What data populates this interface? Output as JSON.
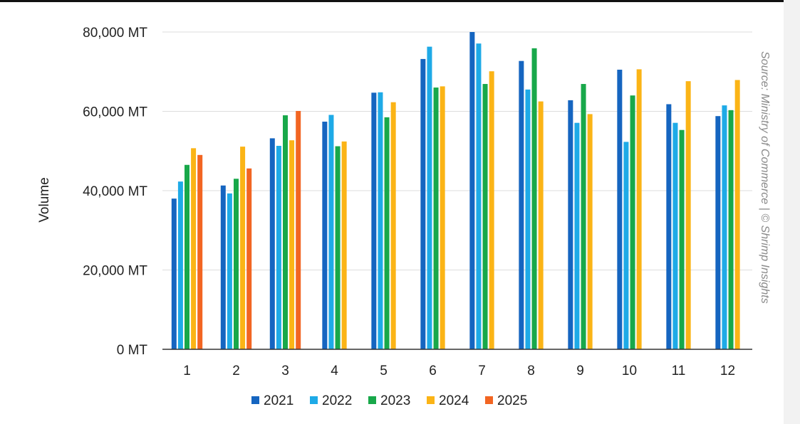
{
  "chart_data": {
    "type": "bar",
    "title": "",
    "xlabel": "",
    "ylabel": "Volume",
    "source": "Source: Ministry of Commerce | © Shrimp Insights",
    "categories": [
      "1",
      "2",
      "3",
      "4",
      "5",
      "6",
      "7",
      "8",
      "9",
      "10",
      "11",
      "12"
    ],
    "ylim": [
      0,
      80000
    ],
    "yticks": [
      0,
      20000,
      40000,
      60000,
      80000
    ],
    "ytick_labels": [
      "0 MT",
      "20,000 MT",
      "40,000 MT",
      "60,000 MT",
      "80,000 MT"
    ],
    "grid": true,
    "legend_position": "bottom",
    "series": [
      {
        "name": "2021",
        "color": "#1565c0",
        "values": [
          38000,
          41300,
          53200,
          57400,
          64700,
          73200,
          80000,
          72700,
          62800,
          70500,
          61800,
          58800
        ]
      },
      {
        "name": "2022",
        "color": "#1eaae7",
        "values": [
          42300,
          39300,
          51300,
          59100,
          64800,
          76300,
          77100,
          65500,
          57100,
          52300,
          57100,
          61500
        ]
      },
      {
        "name": "2023",
        "color": "#18a84a",
        "values": [
          46500,
          43000,
          59000,
          51200,
          58500,
          66000,
          66900,
          75900,
          66900,
          64000,
          55300,
          60300
        ]
      },
      {
        "name": "2024",
        "color": "#fbb416",
        "values": [
          50700,
          51100,
          52700,
          52400,
          62300,
          66300,
          70100,
          62500,
          59300,
          70600,
          67600,
          67900
        ]
      },
      {
        "name": "2025",
        "color": "#f26522",
        "values": [
          49000,
          45600,
          60100,
          null,
          null,
          null,
          null,
          null,
          null,
          null,
          null,
          null
        ]
      }
    ]
  }
}
